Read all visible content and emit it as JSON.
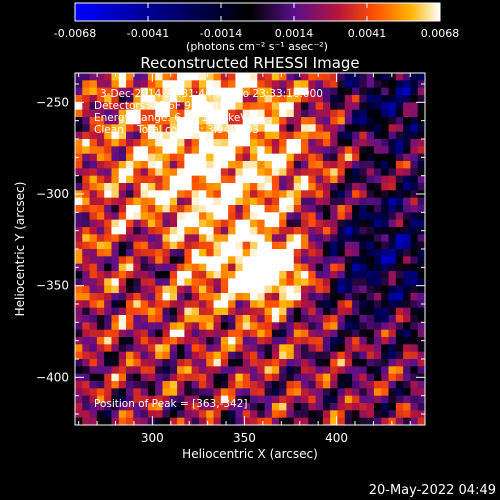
{
  "colorbar": {
    "tick_labels": [
      "-0.0068",
      "-0.0041",
      "-0.0014",
      "0.0014",
      "0.0041",
      "0.0068"
    ],
    "unit_label": "(photons cm⁻² s⁻¹ asec⁻²)",
    "min": -0.0068,
    "max": 0.0068,
    "colormap": [
      "#0000ff",
      "#000000",
      "#5a0f8c",
      "#b4143c",
      "#ff5000",
      "#ffb400",
      "#ffffff"
    ]
  },
  "chart_data": {
    "type": "heatmap",
    "title": "Reconstructed RHESSI Image",
    "xlabel": "Heliocentric X (arcsec)",
    "ylabel": "Heliocentric Y (arcsec)",
    "xlim": [
      258,
      448
    ],
    "ylim": [
      -426,
      -234
    ],
    "x_ticks": [
      300,
      350,
      400
    ],
    "y_ticks": [
      -250,
      -300,
      -350,
      -400
    ],
    "x_tick_labels": [
      "300",
      "350",
      "400"
    ],
    "y_tick_labels": [
      "−250",
      "−300",
      "−350",
      "−400"
    ],
    "peak": [
      363,
      -342
    ],
    "annotations": {
      "time_range": "3-Dec-2014 23:31:44.000 to 23:33:16.000",
      "detectors": "Detectors: 3F 6F 9F, Att 0",
      "energy_range": "Energy Range: 6.0 - 12.0 keV",
      "method": "Clean    Total counts: 3.94E+03",
      "peak_label": "Position of Peak = [363,-342]"
    }
  },
  "footer": {
    "date": "20-May-2022 04:49"
  }
}
